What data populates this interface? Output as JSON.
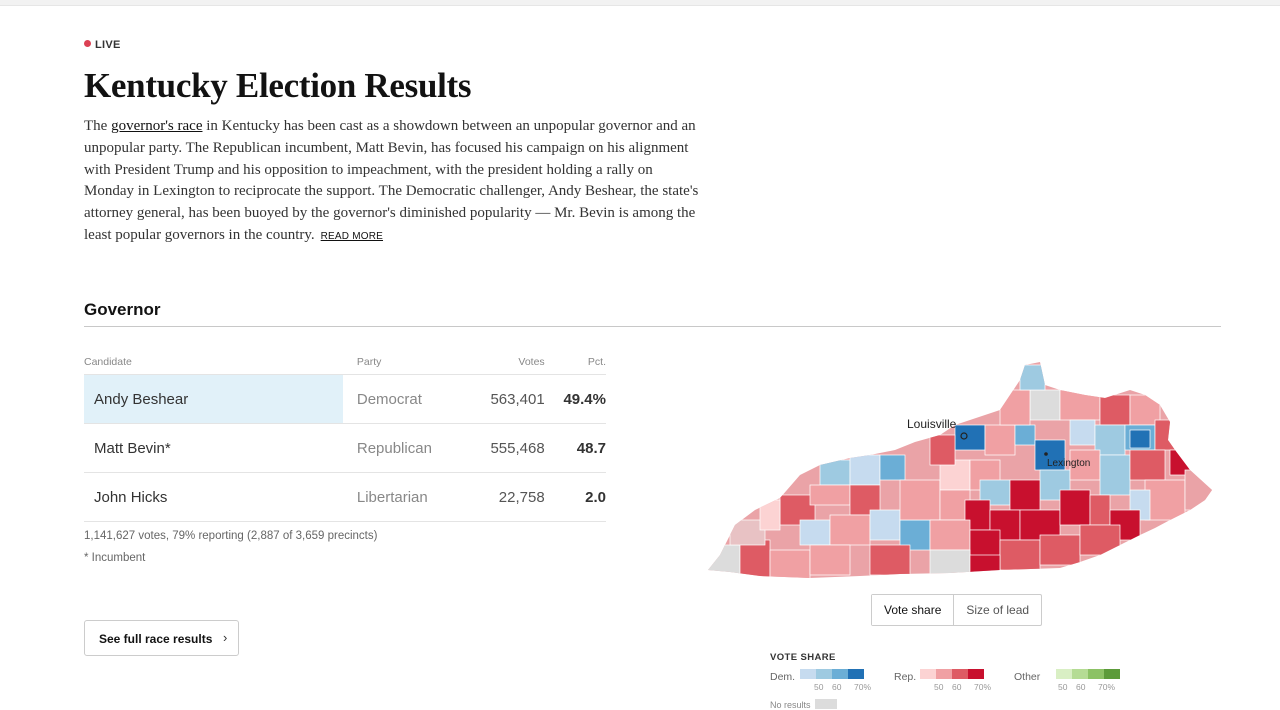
{
  "live_label": "LIVE",
  "title": "Kentucky Election Results",
  "intro": {
    "before_link": "The ",
    "link_text": "governor's race",
    "after_link": " in Kentucky has been cast as a showdown between an unpopular governor and an unpopular party. The Republican incumbent, Matt Bevin, has focused his campaign on his alignment with President Trump and his opposition to impeachment, with the president holding a rally on Monday in Lexington to reciprocate the support. The Democratic challenger, Andy Beshear, the state's attorney general, has been buoyed by the governor's diminished popularity — Mr. Bevin is among the least popular governors in the country.",
    "read_more": "READ MORE"
  },
  "section_title": "Governor",
  "table": {
    "headers": {
      "candidate": "Candidate",
      "party": "Party",
      "votes": "Votes",
      "pct": "Pct."
    },
    "rows": [
      {
        "candidate": "Andy Beshear",
        "party": "Democrat",
        "votes": "563,401",
        "pct": "49.4%"
      },
      {
        "candidate": "Matt Bevin*",
        "party": "Republican",
        "votes": "555,468",
        "pct": "48.7"
      },
      {
        "candidate": "John Hicks",
        "party": "Libertarian",
        "votes": "22,758",
        "pct": "2.0"
      }
    ]
  },
  "summary": "1,141,627 votes, 79% reporting (2,887 of 3,659 precincts)",
  "incumbent_note": "* Incumbent",
  "full_race_button": "See full race results",
  "map": {
    "cities": [
      "Louisville",
      "Lexington"
    ],
    "toggle": [
      "Vote share",
      "Size of lead"
    ],
    "active_toggle": "Vote share"
  },
  "legend": {
    "title": "VOTE SHARE",
    "groups": [
      {
        "label": "Dem.",
        "colors": [
          "#c6dbef",
          "#9ecae1",
          "#6baed6",
          "#2171b5"
        ],
        "ticks": [
          "50",
          "60",
          "70%"
        ]
      },
      {
        "label": "Rep.",
        "colors": [
          "#fcd3d3",
          "#f0a0a3",
          "#de5b64",
          "#c8102e"
        ],
        "ticks": [
          "50",
          "60",
          "70%"
        ]
      },
      {
        "label": "Other",
        "colors": [
          "#d9efc4",
          "#b5dc94",
          "#8cc265",
          "#5c9b3a"
        ],
        "ticks": [
          "50",
          "60",
          "70%"
        ]
      }
    ],
    "no_results": "No results"
  },
  "colors": {
    "winner_highlight": "#e1f1f9",
    "live_dot": "#d0021b"
  }
}
